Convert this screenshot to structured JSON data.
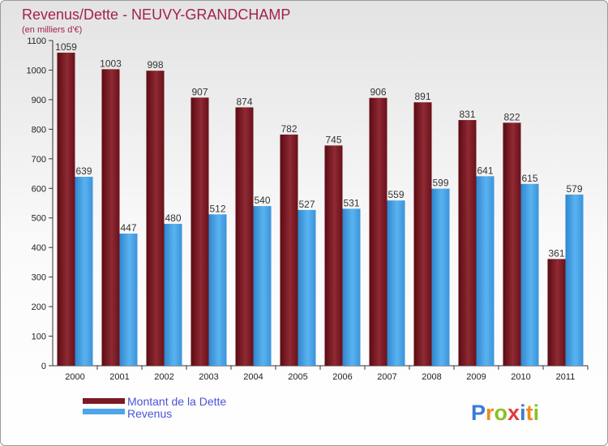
{
  "chart_data": {
    "type": "bar",
    "title": "Revenus/Dette - NEUVY-GRANDCHAMP",
    "subtitle": "(en milliers d'€)",
    "xlabel": "",
    "ylabel": "",
    "ylim": [
      0,
      1100
    ],
    "yticks": [
      0,
      100,
      200,
      300,
      400,
      500,
      600,
      700,
      800,
      900,
      1000,
      1100
    ],
    "grid": false,
    "legend": "bottom-left",
    "categories": [
      "2000",
      "2001",
      "2002",
      "2003",
      "2004",
      "2005",
      "2006",
      "2007",
      "2008",
      "2009",
      "2010",
      "2011"
    ],
    "series": [
      {
        "name": "Montant de la Dette",
        "color": "#7b1a23",
        "values": [
          1059,
          1003,
          998,
          907,
          874,
          782,
          745,
          906,
          891,
          831,
          822,
          361
        ]
      },
      {
        "name": "Revenus",
        "color": "#4da6e8",
        "values": [
          639,
          447,
          480,
          512,
          540,
          527,
          531,
          559,
          599,
          641,
          615,
          579
        ]
      }
    ]
  },
  "watermark": "Proxiti"
}
